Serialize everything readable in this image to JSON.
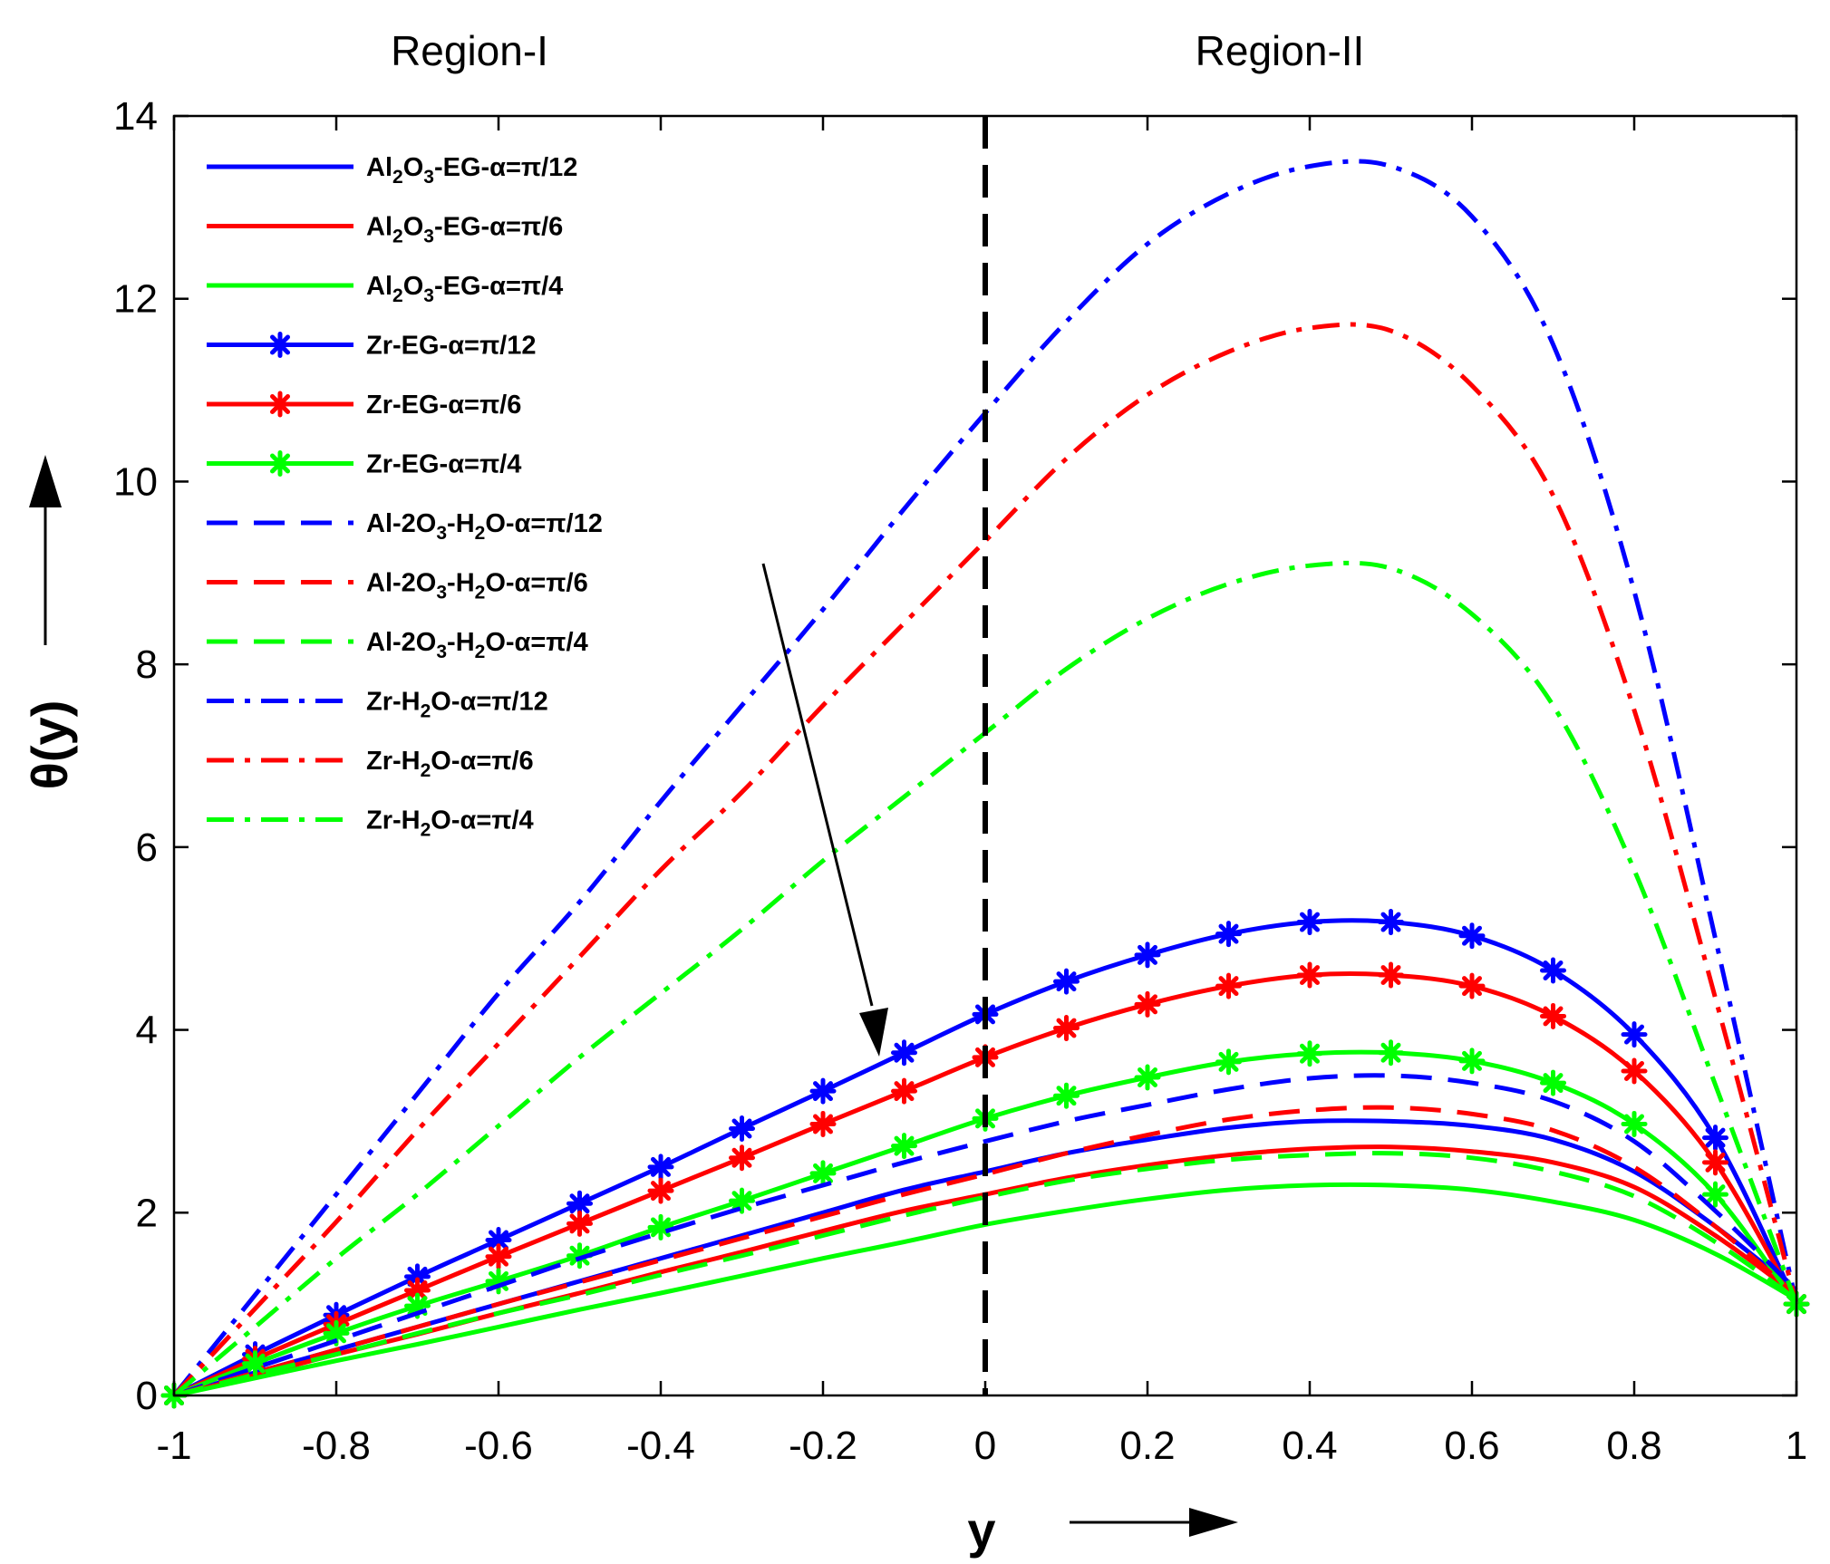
{
  "chart_data": {
    "type": "line",
    "xlabel": "y",
    "ylabel": "θ(y)",
    "xlim": [
      -1,
      1
    ],
    "ylim": [
      0,
      14
    ],
    "xticks": [
      "-1",
      "-0.8",
      "-0.6",
      "-0.4",
      "-0.2",
      "0",
      "0.2",
      "0.4",
      "0.6",
      "0.8",
      "1"
    ],
    "yticks": [
      "0",
      "2",
      "4",
      "6",
      "8",
      "10",
      "12",
      "14"
    ],
    "regions": [
      "Region-I",
      "Region-II"
    ],
    "divider_x": 0,
    "x": [
      -1,
      -0.9,
      -0.8,
      -0.7,
      -0.6,
      -0.5,
      -0.4,
      -0.3,
      -0.2,
      -0.1,
      0,
      0.1,
      0.2,
      0.3,
      0.4,
      0.5,
      0.6,
      0.7,
      0.8,
      0.9,
      1
    ],
    "legend_location": "top-left",
    "series": [
      {
        "name": "Al2O3-EG-α=π/12",
        "legend": {
          "pre": "Al",
          "sub1": "2",
          "mid": "O",
          "sub2": "3",
          "post": "-EG-α=π/12"
        },
        "color": "#0000ff",
        "style": "solid",
        "marker": "none",
        "values": [
          0,
          0.25,
          0.5,
          0.75,
          1.0,
          1.25,
          1.5,
          1.75,
          2.0,
          2.25,
          2.45,
          2.65,
          2.8,
          2.93,
          3.0,
          3.0,
          2.95,
          2.8,
          2.45,
          1.85,
          1.15
        ]
      },
      {
        "name": "Al2O3-EG-α=π/6",
        "legend": {
          "pre": "Al",
          "sub1": "2",
          "mid": "O",
          "sub2": "3",
          "post": "-EG-α=π/6"
        },
        "color": "#ff0000",
        "style": "solid",
        "marker": "none",
        "values": [
          0,
          0.22,
          0.45,
          0.67,
          0.9,
          1.12,
          1.35,
          1.57,
          1.8,
          2.02,
          2.2,
          2.38,
          2.52,
          2.63,
          2.7,
          2.72,
          2.67,
          2.55,
          2.28,
          1.75,
          1.1
        ]
      },
      {
        "name": "Al2O3-EG-α=π/4",
        "legend": {
          "pre": "Al",
          "sub1": "2",
          "mid": "O",
          "sub2": "3",
          "post": "-EG-α=π/4"
        },
        "color": "#00ff00",
        "style": "solid",
        "marker": "none",
        "values": [
          0,
          0.19,
          0.38,
          0.56,
          0.75,
          0.94,
          1.12,
          1.31,
          1.5,
          1.68,
          1.87,
          2.02,
          2.15,
          2.25,
          2.3,
          2.3,
          2.25,
          2.12,
          1.92,
          1.55,
          1.05
        ]
      },
      {
        "name": "Zr-EG-α=π/12",
        "legend": {
          "pre": "Zr-EG-α=π/12",
          "sub1": "",
          "mid": "",
          "sub2": "",
          "post": ""
        },
        "color": "#0000ff",
        "style": "solid",
        "marker": "asterisk",
        "values": [
          0,
          0.45,
          0.88,
          1.3,
          1.7,
          2.1,
          2.5,
          2.92,
          3.33,
          3.75,
          4.17,
          4.53,
          4.82,
          5.05,
          5.18,
          5.18,
          5.03,
          4.65,
          3.95,
          2.82,
          1.0
        ]
      },
      {
        "name": "Zr-EG-α=π/6",
        "legend": {
          "pre": "Zr-EG-α=π/6",
          "sub1": "",
          "mid": "",
          "sub2": "",
          "post": ""
        },
        "color": "#ff0000",
        "style": "solid",
        "marker": "asterisk",
        "values": [
          0,
          0.4,
          0.78,
          1.15,
          1.52,
          1.88,
          2.24,
          2.6,
          2.97,
          3.33,
          3.7,
          4.02,
          4.28,
          4.48,
          4.6,
          4.6,
          4.48,
          4.15,
          3.55,
          2.55,
          1.0
        ]
      },
      {
        "name": "Zr-EG-α=π/4",
        "legend": {
          "pre": "Zr-EG-α=π/4",
          "sub1": "",
          "mid": "",
          "sub2": "",
          "post": ""
        },
        "color": "#00ff00",
        "style": "solid",
        "marker": "asterisk",
        "values": [
          0,
          0.35,
          0.68,
          0.98,
          1.25,
          1.53,
          1.84,
          2.13,
          2.43,
          2.73,
          3.03,
          3.28,
          3.48,
          3.65,
          3.74,
          3.75,
          3.66,
          3.42,
          2.97,
          2.2,
          1.0
        ]
      },
      {
        "name": "Al-2O3-H2O-α=π/12",
        "legend": {
          "pre": "Al-2O",
          "sub1": "3",
          "mid": "-H",
          "sub2": "2",
          "post": "O-α=π/12"
        },
        "color": "#0000ff",
        "style": "dashed",
        "marker": "none",
        "values": [
          0,
          0.3,
          0.6,
          0.9,
          1.2,
          1.5,
          1.78,
          2.05,
          2.3,
          2.55,
          2.78,
          3.0,
          3.18,
          3.35,
          3.47,
          3.5,
          3.42,
          3.22,
          2.78,
          2.02,
          1.15
        ]
      },
      {
        "name": "Al-2O3-H2O-α=π/6",
        "legend": {
          "pre": "Al-2O",
          "sub1": "3",
          "mid": "-H",
          "sub2": "2",
          "post": "O-α=π/6"
        },
        "color": "#ff0000",
        "style": "dashed",
        "marker": "none",
        "values": [
          0,
          0.25,
          0.5,
          0.75,
          1.0,
          1.24,
          1.48,
          1.72,
          1.96,
          2.2,
          2.42,
          2.65,
          2.85,
          3.02,
          3.12,
          3.15,
          3.08,
          2.9,
          2.5,
          1.85,
          1.1
        ]
      },
      {
        "name": "Al-2O3-H2O-α=π/4",
        "legend": {
          "pre": "Al-2O",
          "sub1": "3",
          "mid": "-H",
          "sub2": "2",
          "post": "O-α=π/4"
        },
        "color": "#00ff00",
        "style": "dashed",
        "marker": "none",
        "values": [
          0,
          0.23,
          0.45,
          0.68,
          0.9,
          1.1,
          1.32,
          1.53,
          1.75,
          1.97,
          2.17,
          2.35,
          2.48,
          2.58,
          2.63,
          2.65,
          2.6,
          2.45,
          2.18,
          1.68,
          1.05
        ]
      },
      {
        "name": "Zr-H2O-α=π/12",
        "legend": {
          "pre": "Zr-H",
          "sub1": "2",
          "mid": "O-α=π/12",
          "sub2": "",
          "post": ""
        },
        "color": "#0000ff",
        "style": "dashdot",
        "marker": "none",
        "values": [
          0,
          1.1,
          2.2,
          3.3,
          4.4,
          5.4,
          6.5,
          7.55,
          8.6,
          9.7,
          10.75,
          11.75,
          12.6,
          13.15,
          13.45,
          13.45,
          12.9,
          11.5,
          8.8,
          5.0,
          1.0
        ]
      },
      {
        "name": "Zr-H2O-α=π/6",
        "legend": {
          "pre": "Zr-H",
          "sub1": "2",
          "mid": "O-α=π/6",
          "sub2": "",
          "post": ""
        },
        "color": "#ff0000",
        "style": "dashdot",
        "marker": "none",
        "values": [
          0,
          0.95,
          1.9,
          2.9,
          3.85,
          4.8,
          5.75,
          6.6,
          7.55,
          8.45,
          9.35,
          10.25,
          10.95,
          11.42,
          11.68,
          11.65,
          11.05,
          9.85,
          7.5,
          4.35,
          1.0
        ]
      },
      {
        "name": "Zr-H2O-α=π/4",
        "legend": {
          "pre": "Zr-H",
          "sub1": "2",
          "mid": "O-α=π/4",
          "sub2": "",
          "post": ""
        },
        "color": "#00ff00",
        "style": "dashdot",
        "marker": "none",
        "values": [
          0,
          0.75,
          1.5,
          2.2,
          2.95,
          3.7,
          4.4,
          5.1,
          5.85,
          6.55,
          7.25,
          7.95,
          8.5,
          8.88,
          9.08,
          9.05,
          8.55,
          7.55,
          5.75,
          3.4,
          1.0
        ]
      }
    ]
  }
}
